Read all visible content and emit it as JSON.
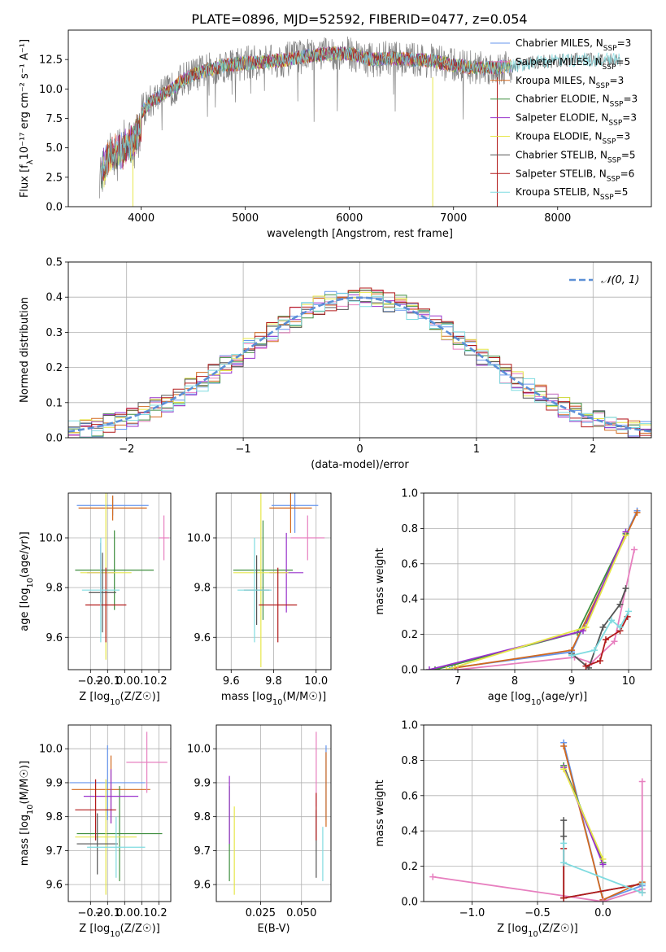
{
  "figure": {
    "title": "PLATE=0896, MJD=52592, FIBERID=0477, z=0.054"
  },
  "colors": {
    "Chabrier MILES": "#6495ed",
    "Salpeter MILES": "#e77fbf",
    "Kroupa MILES": "#d2691e",
    "Chabrier ELODIE": "#3e8e3e",
    "Salpeter ELODIE": "#9932cc",
    "Kroupa ELODIE": "#e6e64a",
    "Chabrier STELIB": "#555555",
    "Salpeter STELIB": "#b21a1a",
    "Kroupa STELIB": "#7fdbe0",
    "data": "#808080",
    "normal": "#5b8fd6"
  },
  "chart_data": [
    {
      "id": "spectrum",
      "type": "line",
      "xlabel": "wavelength [Angstrom, rest frame]",
      "ylabel": "Flux [fλ10⁻¹⁷ erg cm⁻² s⁻¹ A⁻¹]",
      "xlim": [
        3300,
        8900
      ],
      "ylim": [
        0,
        15
      ],
      "xticks": [
        4000,
        5000,
        6000,
        7000,
        8000
      ],
      "yticks": [
        0.0,
        2.5,
        5.0,
        7.5,
        10.0,
        12.5
      ],
      "continuum_x": [
        3600,
        3700,
        3800,
        3900,
        4000,
        4100,
        4200,
        4300,
        4400,
        4500,
        4600,
        4800,
        5000,
        5200,
        5400,
        5600,
        5800,
        6000,
        6200,
        6400,
        6600,
        6800,
        7000,
        7200,
        7400,
        7600,
        7800,
        8000,
        8200,
        8400,
        8600,
        8800
      ],
      "continuum_y": [
        4.0,
        5.5,
        6.0,
        6.5,
        8.0,
        9.0,
        9.5,
        10.0,
        10.8,
        11.2,
        11.5,
        12.0,
        12.2,
        12.3,
        12.5,
        12.8,
        13.0,
        13.0,
        12.5,
        12.6,
        12.5,
        12.4,
        12.0,
        11.8,
        11.8,
        12.0,
        12.3,
        12.4,
        12.5,
        12.5,
        12.5,
        12.5
      ],
      "legend": [
        {
          "label": "Chabrier MILES, NSSP=3"
        },
        {
          "label": "Salpeter MILES, NSSP=5"
        },
        {
          "label": "Kroupa MILES, NSSP=3"
        },
        {
          "label": "Chabrier ELODIE, NSSP=3"
        },
        {
          "label": "Salpeter ELODIE, NSSP=3"
        },
        {
          "label": "Kroupa ELODIE, NSSP=3"
        },
        {
          "label": "Chabrier STELIB, NSSP=5"
        },
        {
          "label": "Salpeter STELIB, NSSP=6"
        },
        {
          "label": "Kroupa STELIB, NSSP=5"
        }
      ],
      "legend_position": "right"
    },
    {
      "id": "residuals",
      "type": "line",
      "xlabel": "(data-model)/error",
      "ylabel": "Normed distribution",
      "xlim": [
        -2.5,
        2.5
      ],
      "ylim": [
        0,
        0.5
      ],
      "xticks": [
        -2,
        -1,
        0,
        1,
        2
      ],
      "yticks": [
        0.0,
        0.1,
        0.2,
        0.3,
        0.4,
        0.5
      ],
      "legend": [
        "𝒩(0, 1)"
      ],
      "legend_position": "top-right",
      "bin_width": 0.1,
      "grid": true
    },
    {
      "id": "age_vs_Z",
      "type": "scatter",
      "xlabel": "Z [log10(Z/Z☉)]",
      "ylabel": "age  [log10(age/yr)]",
      "xlim": [
        -0.33,
        0.27
      ],
      "ylim": [
        9.47,
        10.18
      ],
      "xticks": [
        -0.2,
        -0.1,
        0.0,
        0.1,
        0.2
      ],
      "yticks": [
        9.6,
        9.8,
        10.0
      ],
      "grid": true,
      "points": [
        {
          "series": "Chabrier MILES",
          "x": -0.07,
          "y": 10.13,
          "xerr": 0.21,
          "yerr": 0.04
        },
        {
          "series": "Kroupa MILES",
          "x": -0.07,
          "y": 10.12,
          "xerr": 0.2,
          "yerr": 0.05
        },
        {
          "series": "Salpeter MILES",
          "x": 0.23,
          "y": 10.0,
          "xerr": 0.03,
          "yerr": 0.09
        },
        {
          "series": "Chabrier ELODIE",
          "x": -0.06,
          "y": 9.87,
          "xerr": 0.23,
          "yerr": 0.16
        },
        {
          "series": "Salpeter ELODIE",
          "x": -0.14,
          "y": 9.86,
          "xerr": 0.08,
          "yerr": 0.12
        },
        {
          "series": "Kroupa ELODIE",
          "x": -0.11,
          "y": 9.86,
          "xerr": 0.15,
          "yerr": 0.35
        },
        {
          "series": "Chabrier STELIB",
          "x": -0.13,
          "y": 9.78,
          "xerr": 0.08,
          "yerr": 0.16
        },
        {
          "series": "Salpeter STELIB",
          "x": -0.11,
          "y": 9.73,
          "xerr": 0.12,
          "yerr": 0.15
        },
        {
          "series": "Kroupa STELIB",
          "x": -0.14,
          "y": 9.79,
          "xerr": 0.11,
          "yerr": 0.21
        }
      ]
    },
    {
      "id": "age_vs_mass",
      "type": "scatter",
      "xlabel": "mass [log10(M/M☉)]",
      "ylabel": "",
      "xlim": [
        9.53,
        10.07
      ],
      "ylim": [
        9.47,
        10.18
      ],
      "xticks": [
        9.6,
        9.8,
        10.0
      ],
      "yticks": [
        9.6,
        9.8,
        10.0
      ],
      "grid": true,
      "points": [
        {
          "series": "Chabrier MILES",
          "x": 9.9,
          "y": 10.13,
          "xerr": 0.11,
          "yerr": 0.11
        },
        {
          "series": "Kroupa MILES",
          "x": 9.88,
          "y": 10.12,
          "xerr": 0.1,
          "yerr": 0.1
        },
        {
          "series": "Salpeter MILES",
          "x": 9.96,
          "y": 10.0,
          "xerr": 0.08,
          "yerr": 0.09
        },
        {
          "series": "Chabrier ELODIE",
          "x": 9.75,
          "y": 9.87,
          "xerr": 0.14,
          "yerr": 0.2
        },
        {
          "series": "Salpeter ELODIE",
          "x": 9.86,
          "y": 9.86,
          "xerr": 0.08,
          "yerr": 0.16
        },
        {
          "series": "Kroupa ELODIE",
          "x": 9.74,
          "y": 9.86,
          "xerr": 0.13,
          "yerr": 0.38
        },
        {
          "series": "Chabrier STELIB",
          "x": 9.72,
          "y": 9.79,
          "xerr": 0.06,
          "yerr": 0.14
        },
        {
          "series": "Salpeter STELIB",
          "x": 9.82,
          "y": 9.73,
          "xerr": 0.09,
          "yerr": 0.15
        },
        {
          "series": "Kroupa STELIB",
          "x": 9.71,
          "y": 9.79,
          "xerr": 0.08,
          "yerr": 0.21
        }
      ]
    },
    {
      "id": "massweight_vs_age",
      "type": "line",
      "xlabel": "age  [log10(age/yr)]",
      "ylabel": "mass weight",
      "xlim": [
        6.4,
        10.4
      ],
      "ylim": [
        0,
        1
      ],
      "xticks": [
        7,
        8,
        9,
        10
      ],
      "yticks": [
        0.0,
        0.2,
        0.4,
        0.6,
        0.8,
        1.0
      ],
      "grid": true,
      "series": [
        {
          "series": "Chabrier MILES",
          "x": [
            6.9,
            9.0,
            10.15
          ],
          "y": [
            0.01,
            0.1,
            0.9
          ]
        },
        {
          "series": "Kroupa MILES",
          "x": [
            6.95,
            9.0,
            10.15
          ],
          "y": [
            0.01,
            0.11,
            0.89
          ]
        },
        {
          "series": "Salpeter MILES",
          "x": [
            7.0,
            9.05,
            9.35,
            9.75,
            10.1
          ],
          "y": [
            0.0,
            0.07,
            0.04,
            0.16,
            0.68
          ]
        },
        {
          "series": "Chabrier ELODIE",
          "x": [
            6.6,
            9.1,
            9.95
          ],
          "y": [
            0.0,
            0.21,
            0.77
          ]
        },
        {
          "series": "Salpeter ELODIE",
          "x": [
            6.5,
            9.2,
            9.95
          ],
          "y": [
            0.0,
            0.22,
            0.78
          ]
        },
        {
          "series": "Kroupa ELODIE",
          "x": [
            6.8,
            9.25,
            9.95
          ],
          "y": [
            0.0,
            0.24,
            0.76
          ]
        },
        {
          "series": "Chabrier STELIB",
          "x": [
            9.0,
            9.3,
            9.55,
            9.85,
            9.95
          ],
          "y": [
            0.09,
            0.01,
            0.24,
            0.37,
            0.46
          ]
        },
        {
          "series": "Salpeter STELIB",
          "x": [
            9.25,
            9.5,
            9.6,
            9.85,
            9.98
          ],
          "y": [
            0.02,
            0.05,
            0.17,
            0.22,
            0.3
          ]
        },
        {
          "series": "Kroupa STELIB",
          "x": [
            9.0,
            9.4,
            9.7,
            9.85,
            10.0
          ],
          "y": [
            0.08,
            0.11,
            0.28,
            0.24,
            0.33
          ]
        }
      ]
    },
    {
      "id": "mass_vs_Z",
      "type": "scatter",
      "xlabel": "Z [log10(Z/Z☉)]",
      "ylabel": "mass [log10(M/M☉)]",
      "xlim": [
        -0.33,
        0.27
      ],
      "ylim": [
        9.55,
        10.07
      ],
      "xticks": [
        -0.2,
        -0.1,
        0.0,
        0.1,
        0.2
      ],
      "yticks": [
        9.6,
        9.7,
        9.8,
        9.9,
        10.0
      ],
      "grid": true,
      "points": [
        {
          "series": "Chabrier MILES",
          "x": -0.1,
          "y": 9.9,
          "xerr": 0.22,
          "yerr": 0.11
        },
        {
          "series": "Kroupa MILES",
          "x": -0.08,
          "y": 9.88,
          "xerr": 0.23,
          "yerr": 0.1
        },
        {
          "series": "Salpeter MILES",
          "x": 0.13,
          "y": 9.96,
          "xerr": 0.12,
          "yerr": 0.09
        },
        {
          "series": "Chabrier ELODIE",
          "x": -0.03,
          "y": 9.75,
          "xerr": 0.25,
          "yerr": 0.14
        },
        {
          "series": "Salpeter ELODIE",
          "x": -0.08,
          "y": 9.86,
          "xerr": 0.16,
          "yerr": 0.08
        },
        {
          "series": "Kroupa ELODIE",
          "x": -0.11,
          "y": 9.74,
          "xerr": 0.18,
          "yerr": 0.17
        },
        {
          "series": "Chabrier STELIB",
          "x": -0.16,
          "y": 9.72,
          "xerr": 0.12,
          "yerr": 0.09
        },
        {
          "series": "Salpeter STELIB",
          "x": -0.17,
          "y": 9.82,
          "xerr": 0.12,
          "yerr": 0.09
        },
        {
          "series": "Kroupa STELIB",
          "x": -0.05,
          "y": 9.71,
          "xerr": 0.17,
          "yerr": 0.09
        }
      ]
    },
    {
      "id": "mass_vs_ebv",
      "type": "scatter",
      "xlabel": "E(B-V)",
      "ylabel": "",
      "xlim": [
        -0.002,
        0.068
      ],
      "ylim": [
        9.55,
        10.07
      ],
      "xticks": [
        0.025,
        0.05
      ],
      "yticks": [
        9.6,
        9.7,
        9.8,
        9.9,
        10.0
      ],
      "grid": true,
      "points": [
        {
          "series": "Chabrier MILES",
          "x": 0.065,
          "y": 9.9,
          "xerr": 0,
          "yerr": 0.11
        },
        {
          "series": "Kroupa MILES",
          "x": 0.065,
          "y": 9.88,
          "xerr": 0,
          "yerr": 0.11
        },
        {
          "series": "Salpeter MILES",
          "x": 0.059,
          "y": 9.94,
          "xerr": 0,
          "yerr": 0.11
        },
        {
          "series": "Chabrier ELODIE",
          "x": 0.006,
          "y": 9.75,
          "xerr": 0,
          "yerr": 0.14
        },
        {
          "series": "Salpeter ELODIE",
          "x": 0.006,
          "y": 9.82,
          "xerr": 0,
          "yerr": 0.1
        },
        {
          "series": "Kroupa ELODIE",
          "x": 0.009,
          "y": 9.7,
          "xerr": 0,
          "yerr": 0.13
        },
        {
          "series": "Chabrier STELIB",
          "x": 0.059,
          "y": 9.72,
          "xerr": 0,
          "yerr": 0.1
        },
        {
          "series": "Salpeter STELIB",
          "x": 0.059,
          "y": 9.8,
          "xerr": 0,
          "yerr": 0.07
        },
        {
          "series": "Kroupa STELIB",
          "x": 0.063,
          "y": 9.69,
          "xerr": 0,
          "yerr": 0.08
        }
      ]
    },
    {
      "id": "massweight_vs_Z",
      "type": "line",
      "xlabel": "Z [log10(Z/Z☉)]",
      "ylabel": "mass weight",
      "xlim": [
        -1.37,
        0.37
      ],
      "ylim": [
        0,
        1
      ],
      "xticks": [
        -1.0,
        -0.5,
        0.0
      ],
      "yticks": [
        0.0,
        0.2,
        0.4,
        0.6,
        0.8,
        1.0
      ],
      "grid": true,
      "series": [
        {
          "series": "Chabrier MILES",
          "x": [
            -0.3,
            0.0,
            0.3
          ],
          "y": [
            0.9,
            0.01,
            0.09
          ]
        },
        {
          "series": "Kroupa MILES",
          "x": [
            -0.3,
            0.0,
            0.3
          ],
          "y": [
            0.88,
            0.01,
            0.11
          ]
        },
        {
          "series": "Salpeter MILES",
          "x": [
            -1.3,
            0.0,
            0.3,
            0.3
          ],
          "y": [
            0.14,
            0.0,
            0.07,
            0.68
          ]
        },
        {
          "series": "Chabrier ELODIE",
          "x": [
            -0.3,
            0.0
          ],
          "y": [
            0.77,
            0.22
          ]
        },
        {
          "series": "Salpeter ELODIE",
          "x": [
            -0.3,
            0.0
          ],
          "y": [
            0.76,
            0.21
          ]
        },
        {
          "series": "Kroupa ELODIE",
          "x": [
            -0.3,
            0.0
          ],
          "y": [
            0.75,
            0.24
          ]
        },
        {
          "series": "Chabrier STELIB",
          "x": [
            -0.3,
            -0.3,
            -0.3,
            0.3
          ],
          "y": [
            0.46,
            0.37,
            0.02,
            0.1
          ]
        },
        {
          "series": "Salpeter STELIB",
          "x": [
            -0.3,
            -0.3,
            0.3,
            0.3
          ],
          "y": [
            0.3,
            0.02,
            0.1,
            0.05
          ]
        },
        {
          "series": "Kroupa STELIB",
          "x": [
            -0.3,
            -0.3,
            0.3,
            0.3
          ],
          "y": [
            0.33,
            0.22,
            0.05,
            0.1
          ]
        }
      ]
    }
  ]
}
